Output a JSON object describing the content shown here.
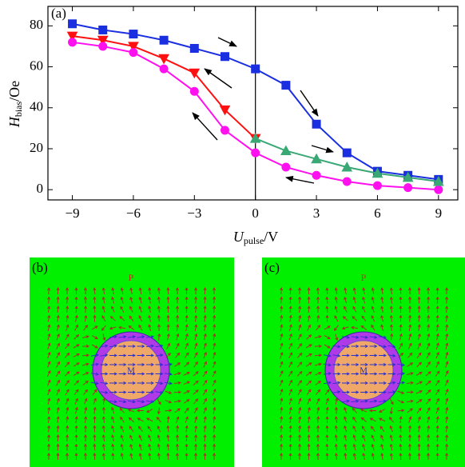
{
  "chart_data": {
    "type": "line",
    "panel_label": "(a)",
    "xlabel": {
      "main": "U",
      "sub": "pulse",
      "unit": "/V"
    },
    "ylabel": {
      "main": "H",
      "sub": "bias",
      "unit": "/Oe"
    },
    "xlim": [
      -10.2,
      9.95
    ],
    "ylim": [
      -5,
      89.5
    ],
    "xticks": [
      {
        "value": -9,
        "label": "−9"
      },
      {
        "value": -6,
        "label": "−6"
      },
      {
        "value": -3,
        "label": "−3"
      },
      0,
      3,
      6,
      9
    ],
    "yticks": [
      0,
      20,
      40,
      60,
      80
    ],
    "grid": false,
    "series": [
      {
        "color": "#1a2fe0",
        "marker": "square",
        "x": [
          -9,
          -7.5,
          -6,
          -4.5,
          -3,
          -1.5,
          0,
          1.5,
          3,
          4.5,
          6,
          7.5,
          9
        ],
        "values": [
          81,
          78,
          76,
          73,
          69,
          65,
          59,
          51,
          32,
          18,
          9,
          7,
          5
        ]
      },
      {
        "color": "#ff1010",
        "marker": "triangle-down",
        "x": [
          -9,
          -7.5,
          -6,
          -4.5,
          -3,
          -1.5,
          0
        ],
        "values": [
          75,
          73,
          70,
          64,
          57,
          39,
          25
        ]
      },
      {
        "color": "#ff10ee",
        "marker": "circle",
        "x": [
          -9,
          -7.5,
          -6,
          -4.5,
          -3,
          -1.5,
          0,
          1.5,
          3,
          4.5,
          6,
          7.5,
          9
        ],
        "values": [
          72,
          70,
          67,
          59,
          48,
          29,
          18,
          11,
          7,
          4,
          2,
          1,
          0
        ]
      },
      {
        "color": "#3aa874",
        "marker": "triangle-up",
        "x": [
          0,
          1.5,
          3,
          4.5,
          6,
          7.5,
          9
        ],
        "values": [
          25,
          19,
          15,
          11,
          8,
          6,
          4
        ]
      }
    ]
  },
  "panels": [
    {
      "label": "(b)",
      "top": "P",
      "center": "M"
    },
    {
      "label": "(c)",
      "top": "P",
      "center": "M"
    }
  ]
}
